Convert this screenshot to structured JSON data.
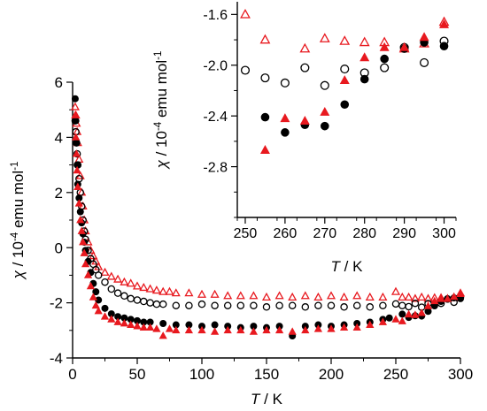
{
  "chart_data": [
    {
      "type": "scatter",
      "xlabel": "T / K",
      "xlabel_italic": "T",
      "xlabel_unit": " / K",
      "ylabel": "χ / 10-4 emu mol-1",
      "xlim": [
        0,
        300
      ],
      "ylim": [
        -4,
        6
      ],
      "xticks": [
        0,
        50,
        100,
        150,
        200,
        250,
        300
      ],
      "yticks": [
        -4,
        -2,
        0,
        2,
        4,
        6
      ],
      "grid": false,
      "series": [
        {
          "marker": "open-triangle",
          "color": "#e8191f",
          "points": [
            [
              2,
              5.1
            ],
            [
              2.5,
              4.8
            ],
            [
              3,
              4.5
            ],
            [
              3.5,
              4.2
            ],
            [
              4,
              3.8
            ],
            [
              5,
              3.2
            ],
            [
              6,
              2.6
            ],
            [
              7,
              2.0
            ],
            [
              8,
              1.5
            ],
            [
              9,
              1.0
            ],
            [
              10,
              0.6
            ],
            [
              12,
              0.2
            ],
            [
              14,
              -0.1
            ],
            [
              16,
              -0.3
            ],
            [
              18,
              -0.5
            ],
            [
              20,
              -0.7
            ],
            [
              25,
              -0.9
            ],
            [
              30,
              -1.05
            ],
            [
              35,
              -1.15
            ],
            [
              40,
              -1.25
            ],
            [
              45,
              -1.3
            ],
            [
              50,
              -1.4
            ],
            [
              55,
              -1.45
            ],
            [
              60,
              -1.5
            ],
            [
              65,
              -1.55
            ],
            [
              70,
              -1.6
            ],
            [
              75,
              -1.6
            ],
            [
              80,
              -1.65
            ],
            [
              90,
              -1.65
            ],
            [
              100,
              -1.7
            ],
            [
              110,
              -1.7
            ],
            [
              120,
              -1.75
            ],
            [
              130,
              -1.75
            ],
            [
              140,
              -1.75
            ],
            [
              150,
              -1.8
            ],
            [
              160,
              -1.75
            ],
            [
              170,
              -1.8
            ],
            [
              180,
              -1.75
            ],
            [
              190,
              -1.8
            ],
            [
              200,
              -1.75
            ],
            [
              210,
              -1.8
            ],
            [
              220,
              -1.75
            ],
            [
              230,
              -1.8
            ],
            [
              240,
              -1.8
            ],
            [
              250,
              -1.6
            ],
            [
              255,
              -1.8
            ],
            [
              260,
              -1.8
            ],
            [
              265,
              -1.85
            ],
            [
              270,
              -1.8
            ],
            [
              275,
              -1.85
            ],
            [
              280,
              -1.82
            ],
            [
              285,
              -1.82
            ],
            [
              290,
              -1.85
            ],
            [
              295,
              -1.82
            ],
            [
              300,
              -1.65
            ]
          ]
        },
        {
          "marker": "open-circle",
          "color": "#000000",
          "points": [
            [
              2,
              4.6
            ],
            [
              2.5,
              4.2
            ],
            [
              3,
              3.8
            ],
            [
              3.5,
              3.4
            ],
            [
              4,
              3.0
            ],
            [
              5,
              2.5
            ],
            [
              6,
              2.0
            ],
            [
              7,
              1.5
            ],
            [
              8,
              1.0
            ],
            [
              9,
              0.6
            ],
            [
              10,
              0.3
            ],
            [
              12,
              -0.1
            ],
            [
              14,
              -0.4
            ],
            [
              16,
              -0.6
            ],
            [
              18,
              -0.8
            ],
            [
              20,
              -1.0
            ],
            [
              25,
              -1.25
            ],
            [
              30,
              -1.5
            ],
            [
              35,
              -1.65
            ],
            [
              40,
              -1.75
            ],
            [
              45,
              -1.85
            ],
            [
              50,
              -1.9
            ],
            [
              55,
              -1.95
            ],
            [
              60,
              -2.0
            ],
            [
              65,
              -2.05
            ],
            [
              70,
              -2.05
            ],
            [
              80,
              -2.1
            ],
            [
              90,
              -2.1
            ],
            [
              100,
              -2.05
            ],
            [
              110,
              -2.1
            ],
            [
              120,
              -2.1
            ],
            [
              130,
              -2.1
            ],
            [
              140,
              -2.1
            ],
            [
              150,
              -2.15
            ],
            [
              160,
              -2.1
            ],
            [
              170,
              -2.1
            ],
            [
              180,
              -2.15
            ],
            [
              190,
              -2.1
            ],
            [
              200,
              -2.1
            ],
            [
              210,
              -2.15
            ],
            [
              220,
              -2.1
            ],
            [
              230,
              -2.15
            ],
            [
              240,
              -2.1
            ],
            [
              250,
              -2.04
            ],
            [
              255,
              -2.1
            ],
            [
              260,
              -2.14
            ],
            [
              265,
              -2.02
            ],
            [
              270,
              -2.16
            ],
            [
              275,
              -2.03
            ],
            [
              280,
              -2.06
            ],
            [
              285,
              -2.02
            ],
            [
              290,
              -1.86
            ],
            [
              295,
              -1.98
            ],
            [
              300,
              -1.81
            ]
          ]
        },
        {
          "marker": "filled-circle",
          "color": "#000000",
          "points": [
            [
              2,
              5.4
            ],
            [
              2.5,
              4.6
            ],
            [
              3,
              3.8
            ],
            [
              3.5,
              3.0
            ],
            [
              4,
              2.3
            ],
            [
              5,
              1.8
            ],
            [
              6,
              1.3
            ],
            [
              7,
              0.9
            ],
            [
              8,
              0.5
            ],
            [
              9,
              0.2
            ],
            [
              10,
              -0.1
            ],
            [
              12,
              -0.5
            ],
            [
              14,
              -0.9
            ],
            [
              16,
              -1.3
            ],
            [
              18,
              -1.6
            ],
            [
              20,
              -1.9
            ],
            [
              25,
              -2.2
            ],
            [
              30,
              -2.4
            ],
            [
              35,
              -2.5
            ],
            [
              40,
              -2.55
            ],
            [
              45,
              -2.6
            ],
            [
              50,
              -2.65
            ],
            [
              55,
              -2.7
            ],
            [
              60,
              -2.7
            ],
            [
              70,
              -2.75
            ],
            [
              80,
              -2.8
            ],
            [
              90,
              -2.8
            ],
            [
              100,
              -2.85
            ],
            [
              110,
              -2.8
            ],
            [
              120,
              -2.85
            ],
            [
              130,
              -2.9
            ],
            [
              140,
              -2.85
            ],
            [
              150,
              -2.9
            ],
            [
              160,
              -2.85
            ],
            [
              170,
              -3.2
            ],
            [
              180,
              -2.85
            ],
            [
              190,
              -2.8
            ],
            [
              200,
              -2.85
            ],
            [
              210,
              -2.8
            ],
            [
              220,
              -2.75
            ],
            [
              230,
              -2.7
            ],
            [
              240,
              -2.6
            ],
            [
              245,
              -2.55
            ],
            [
              255,
              -2.41
            ],
            [
              260,
              -2.53
            ],
            [
              265,
              -2.47
            ],
            [
              270,
              -2.48
            ],
            [
              275,
              -2.31
            ],
            [
              280,
              -2.11
            ],
            [
              285,
              -1.95
            ],
            [
              290,
              -1.87
            ],
            [
              295,
              -1.82
            ],
            [
              300,
              -1.85
            ]
          ]
        },
        {
          "marker": "filled-triangle",
          "color": "#e8191f",
          "points": [
            [
              2,
              4.8
            ],
            [
              2.5,
              4.0
            ],
            [
              3,
              3.4
            ],
            [
              3.5,
              2.8
            ],
            [
              4,
              2.2
            ],
            [
              5,
              1.6
            ],
            [
              6,
              1.0
            ],
            [
              7,
              0.6
            ],
            [
              8,
              0.2
            ],
            [
              9,
              -0.2
            ],
            [
              10,
              -0.6
            ],
            [
              12,
              -1.0
            ],
            [
              14,
              -1.4
            ],
            [
              16,
              -1.8
            ],
            [
              18,
              -2.1
            ],
            [
              20,
              -2.3
            ],
            [
              25,
              -2.5
            ],
            [
              30,
              -2.6
            ],
            [
              35,
              -2.7
            ],
            [
              40,
              -2.75
            ],
            [
              45,
              -2.8
            ],
            [
              50,
              -2.85
            ],
            [
              55,
              -2.9
            ],
            [
              60,
              -2.9
            ],
            [
              65,
              -2.95
            ],
            [
              70,
              -3.2
            ],
            [
              75,
              -2.95
            ],
            [
              80,
              -3.0
            ],
            [
              90,
              -3.0
            ],
            [
              100,
              -3.0
            ],
            [
              110,
              -3.05
            ],
            [
              120,
              -3.0
            ],
            [
              130,
              -3.0
            ],
            [
              140,
              -3.05
            ],
            [
              150,
              -3.0
            ],
            [
              160,
              -3.0
            ],
            [
              170,
              -3.05
            ],
            [
              180,
              -3.0
            ],
            [
              190,
              -2.95
            ],
            [
              200,
              -2.95
            ],
            [
              210,
              -2.9
            ],
            [
              220,
              -2.9
            ],
            [
              230,
              -2.8
            ],
            [
              240,
              -2.7
            ],
            [
              250,
              -2.6
            ],
            [
              255,
              -2.67
            ],
            [
              260,
              -2.42
            ],
            [
              265,
              -2.44
            ],
            [
              270,
              -2.37
            ],
            [
              275,
              -2.12
            ],
            [
              280,
              -1.94
            ],
            [
              285,
              -1.86
            ],
            [
              290,
              -1.86
            ],
            [
              295,
              -1.78
            ],
            [
              300,
              -1.68
            ]
          ]
        }
      ]
    },
    {
      "type": "scatter",
      "xlabel": "T / K",
      "xlabel_italic": "T",
      "xlabel_unit": " / K",
      "ylabel": "χ / 10-4 emu mol-1",
      "xlim": [
        248,
        303
      ],
      "ylim": [
        -3.2,
        -1.5
      ],
      "xticks": [
        250,
        260,
        270,
        280,
        290,
        300
      ],
      "yticks": [
        -2.8,
        -2.4,
        -2.0,
        -1.6
      ],
      "grid": false,
      "series": [
        {
          "marker": "open-triangle",
          "color": "#e8191f",
          "points": [
            [
              250,
              -1.6
            ],
            [
              255,
              -1.8
            ],
            [
              265,
              -1.87
            ],
            [
              270,
              -1.79
            ],
            [
              275,
              -1.81
            ],
            [
              280,
              -1.82
            ],
            [
              285,
              -1.82
            ],
            [
              290,
              -1.87
            ],
            [
              295,
              -1.83
            ],
            [
              300,
              -1.66
            ]
          ]
        },
        {
          "marker": "open-circle",
          "color": "#000000",
          "points": [
            [
              250,
              -2.04
            ],
            [
              255,
              -2.1
            ],
            [
              260,
              -2.14
            ],
            [
              265,
              -2.02
            ],
            [
              270,
              -2.16
            ],
            [
              275,
              -2.03
            ],
            [
              280,
              -2.06
            ],
            [
              285,
              -2.02
            ],
            [
              290,
              -1.86
            ],
            [
              295,
              -1.98
            ],
            [
              300,
              -1.81
            ]
          ]
        },
        {
          "marker": "filled-circle",
          "color": "#000000",
          "points": [
            [
              255,
              -2.41
            ],
            [
              260,
              -2.53
            ],
            [
              265,
              -2.47
            ],
            [
              270,
              -2.48
            ],
            [
              275,
              -2.31
            ],
            [
              280,
              -2.11
            ],
            [
              285,
              -1.95
            ],
            [
              290,
              -1.87
            ],
            [
              295,
              -1.82
            ],
            [
              300,
              -1.85
            ]
          ]
        },
        {
          "marker": "filled-triangle",
          "color": "#e8191f",
          "points": [
            [
              255,
              -2.67
            ],
            [
              260,
              -2.42
            ],
            [
              265,
              -2.44
            ],
            [
              270,
              -2.37
            ],
            [
              275,
              -2.12
            ],
            [
              280,
              -1.94
            ],
            [
              285,
              -1.86
            ],
            [
              290,
              -1.86
            ],
            [
              295,
              -1.78
            ],
            [
              300,
              -1.68
            ]
          ]
        }
      ]
    }
  ]
}
